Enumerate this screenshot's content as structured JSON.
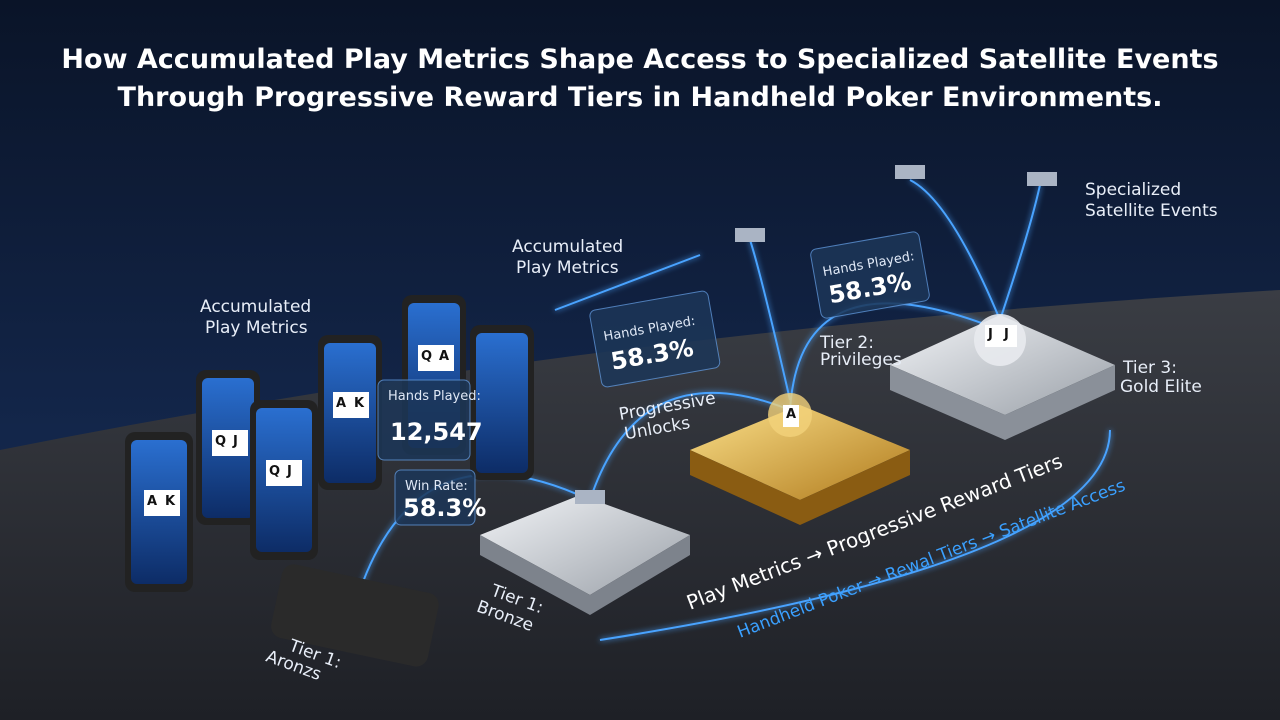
{
  "header": {
    "title": [
      "How Accumulated Play Metrics Shape Access to Specialized Satellite Events",
      "Through Progressive Reward Tiers in Handheld Poker Environments."
    ]
  },
  "labels": {
    "metrics_left": [
      "Accumulated",
      "Play Metrics"
    ],
    "metrics_mid": [
      "Accumulated",
      "Play Metrics"
    ],
    "satellite_events": [
      "Specialized",
      "Satellite Events"
    ],
    "progressive_unlocks": [
      "Progressive",
      "Unlocks"
    ]
  },
  "panels": [
    {
      "label": "Hands Played:",
      "value": "12,547"
    },
    {
      "label": "Win Rate:",
      "value": "58.3%"
    },
    {
      "label": "Hands Played:",
      "value": "58.3%"
    },
    {
      "label": "Hands Played:",
      "value": "58.3%"
    }
  ],
  "tiers": [
    {
      "label": [
        "Tier 1:",
        "Bronze"
      ]
    },
    {
      "label": [
        "Tier 2:",
        "Privileges"
      ]
    },
    {
      "label": [
        "Tier 3:",
        "Gold Elite"
      ]
    },
    {
      "label": [
        "Tier 1:",
        "Aronzs"
      ]
    }
  ],
  "flows": {
    "main": "Play Metrics → Progressive Reward Tiers",
    "sub": "Handheld Poker → Rewal Tiers → Satellite Access"
  },
  "cards": [
    [
      "A",
      "K"
    ],
    [
      "Q",
      "J"
    ],
    [
      "Q",
      "J"
    ],
    [
      "A",
      "K"
    ],
    [
      "Q",
      "A"
    ],
    [
      "A"
    ],
    [
      "J",
      "J"
    ]
  ]
}
